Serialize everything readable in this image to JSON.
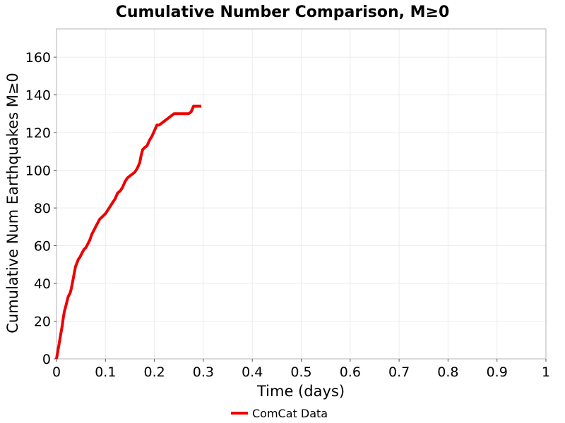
{
  "chart_data": {
    "type": "line",
    "title": "Cumulative Number Comparison, M≥0",
    "xlabel": "Time (days)",
    "ylabel": "Cumulative Num Earthquakes M≥0",
    "xlim": [
      0,
      1
    ],
    "ylim": [
      0,
      175
    ],
    "xticks": [
      "0",
      "0.1",
      "0.2",
      "0.3",
      "0.4",
      "0.5",
      "0.6",
      "0.7",
      "0.8",
      "0.9",
      "1"
    ],
    "yticks": [
      "0",
      "20",
      "40",
      "60",
      "80",
      "100",
      "120",
      "140",
      "160"
    ],
    "grid": true,
    "legend_position": "bottom",
    "series": [
      {
        "name": "ComCat Data",
        "color": "#ee0000",
        "x": [
          0.0,
          0.002,
          0.004,
          0.006,
          0.008,
          0.01,
          0.012,
          0.014,
          0.016,
          0.018,
          0.02,
          0.022,
          0.024,
          0.026,
          0.028,
          0.03,
          0.033,
          0.036,
          0.039,
          0.042,
          0.045,
          0.048,
          0.052,
          0.056,
          0.06,
          0.064,
          0.068,
          0.072,
          0.076,
          0.08,
          0.084,
          0.088,
          0.092,
          0.096,
          0.1,
          0.105,
          0.11,
          0.115,
          0.12,
          0.125,
          0.13,
          0.135,
          0.14,
          0.145,
          0.15,
          0.155,
          0.16,
          0.165,
          0.17,
          0.173,
          0.176,
          0.18,
          0.185,
          0.19,
          0.195,
          0.2,
          0.205,
          0.21,
          0.215,
          0.22,
          0.225,
          0.23,
          0.235,
          0.24,
          0.245,
          0.25,
          0.26,
          0.27,
          0.275,
          0.28,
          0.29,
          0.296
        ],
        "y": [
          0,
          3,
          6,
          9,
          12,
          15,
          18,
          22,
          25,
          27,
          29,
          31,
          33,
          34,
          35,
          37,
          41,
          45,
          49,
          51,
          53,
          54,
          56,
          58,
          59,
          61,
          63,
          66,
          68,
          70,
          72,
          74,
          75,
          76,
          77,
          79,
          81,
          83,
          85,
          88,
          89,
          91,
          94,
          96,
          97,
          98,
          99,
          101,
          104,
          108,
          111,
          112,
          113,
          116,
          118,
          121,
          124,
          124,
          125,
          126,
          127,
          128,
          129,
          130,
          130,
          130,
          130,
          130,
          131,
          134,
          134,
          134
        ]
      }
    ]
  }
}
